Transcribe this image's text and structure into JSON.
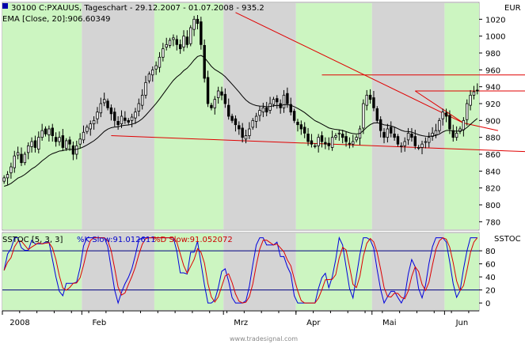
{
  "header": {
    "title": "30100  C:PXAUUS, Tageschart - 29.12.2007 - 01.07.2008 - 935.2",
    "indicator": "EMA [Close, 20]:906.60349",
    "currency": "EUR"
  },
  "stoch_header": {
    "label": "SSTOC [5, 3, 3]",
    "k_text": "%K Slow:91.012611",
    "d_text": "%D Slow:91.052072",
    "panel": "SSTOC"
  },
  "footer": {
    "watermark": "www.tradesignal.com"
  },
  "colors": {
    "band_green": "#ccf5c1",
    "band_gray": "#d4d4d4",
    "candle": "#000000",
    "trend": "#e00000",
    "k_line": "#0000dd",
    "d_line": "#dd0000",
    "ref_line": "#000080"
  },
  "chart_data": [
    {
      "type": "candlestick",
      "ylim": [
        770,
        1040
      ],
      "ytick_labels": [
        "780",
        "800",
        "820",
        "840",
        "860",
        "880",
        "900",
        "920",
        "940",
        "960",
        "980",
        "1000",
        "1020"
      ],
      "x_ticks": [
        "2008",
        "Feb",
        "Mrz",
        "Apr",
        "Mai",
        "Jun"
      ],
      "month_shading": [
        {
          "month": "2008",
          "shade": "green",
          "start": -0.5,
          "end": 22.5
        },
        {
          "month": "Feb",
          "shade": "gray",
          "start": 22.5,
          "end": 43.5
        },
        {
          "month": "Feb-end",
          "shade": "green",
          "start": 43.5,
          "end": 63.5
        },
        {
          "month": "Mrz",
          "shade": "gray",
          "start": 63.5,
          "end": 84.5
        },
        {
          "month": "Apr",
          "shade": "green",
          "start": 84.5,
          "end": 106.5
        },
        {
          "month": "Mai",
          "shade": "gray",
          "start": 106.5,
          "end": 127.5
        },
        {
          "month": "Jun",
          "shade": "green",
          "start": 127.5,
          "end": 137.5
        }
      ],
      "closes": [
        832,
        836,
        845,
        858,
        862,
        850,
        860,
        870,
        875,
        868,
        880,
        888,
        884,
        890,
        882,
        875,
        880,
        868,
        876,
        872,
        860,
        870,
        878,
        886,
        892,
        896,
        900,
        910,
        920,
        925,
        915,
        908,
        900,
        895,
        905,
        900,
        898,
        904,
        910,
        920,
        930,
        945,
        955,
        960,
        965,
        975,
        985,
        990,
        995,
        998,
        990,
        985,
        1000,
        990,
        1010,
        1020,
        1015,
        990,
        950,
        920,
        915,
        925,
        935,
        930,
        920,
        905,
        900,
        895,
        890,
        880,
        882,
        890,
        900,
        905,
        912,
        915,
        910,
        920,
        925,
        922,
        915,
        930,
        920,
        910,
        900,
        895,
        890,
        885,
        875,
        872,
        870,
        880,
        875,
        872,
        870,
        880,
        882,
        885,
        880,
        875,
        872,
        875,
        880,
        890,
        920,
        930,
        925,
        915,
        900,
        888,
        880,
        890,
        885,
        880,
        872,
        870,
        875,
        885,
        880,
        870,
        868,
        872,
        875,
        880,
        885,
        888,
        900,
        910,
        905,
        890,
        880,
        885,
        890,
        900,
        920,
        930,
        934,
        935
      ],
      "ema_label": "EMA [Close, 20]",
      "trendlines": [
        {
          "from": [
            67,
            1028
          ],
          "to": [
            133,
            897
          ]
        },
        {
          "from": [
            31,
            882
          ],
          "to": [
            158,
            862
          ]
        },
        {
          "from": [
            92,
            954
          ],
          "to": [
            158,
            954
          ]
        },
        {
          "from": [
            119,
            935
          ],
          "to": [
            158,
            935
          ]
        },
        {
          "from": [
            119,
            935
          ],
          "to": [
            133,
            897
          ]
        },
        {
          "from": [
            133,
            897
          ],
          "to": [
            143,
            888
          ]
        }
      ]
    },
    {
      "type": "line",
      "name": "SSTOC",
      "ylim": [
        -12,
        108
      ],
      "ytick_labels": [
        "0",
        "20",
        "40",
        "60",
        "80"
      ],
      "ref_levels": [
        20,
        80
      ]
    }
  ]
}
